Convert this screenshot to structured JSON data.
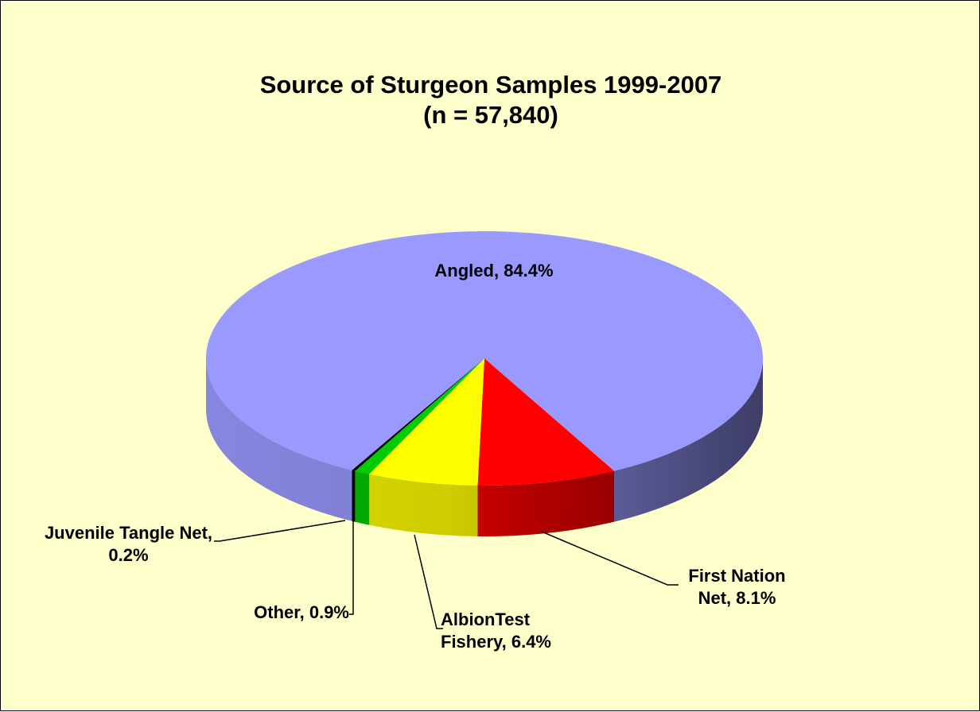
{
  "chart_data": {
    "type": "pie3d",
    "title": "Source of Sturgeon Samples 1999-2007",
    "subtitle": "(n = 57,840)",
    "values": [
      84.4,
      8.1,
      6.4,
      0.9,
      0.2
    ],
    "value_labels": [
      "Angled, 84.4%",
      "First Nation Net, 8.1%",
      "AlbionTest Fishery, 6.4%",
      "Other, 0.9%",
      "Juvenile Tangle Net, 0.2%"
    ],
    "colors": [
      "#9999ff",
      "#ff0000",
      "#ffff00",
      "#00cc00",
      "#000000"
    ]
  }
}
